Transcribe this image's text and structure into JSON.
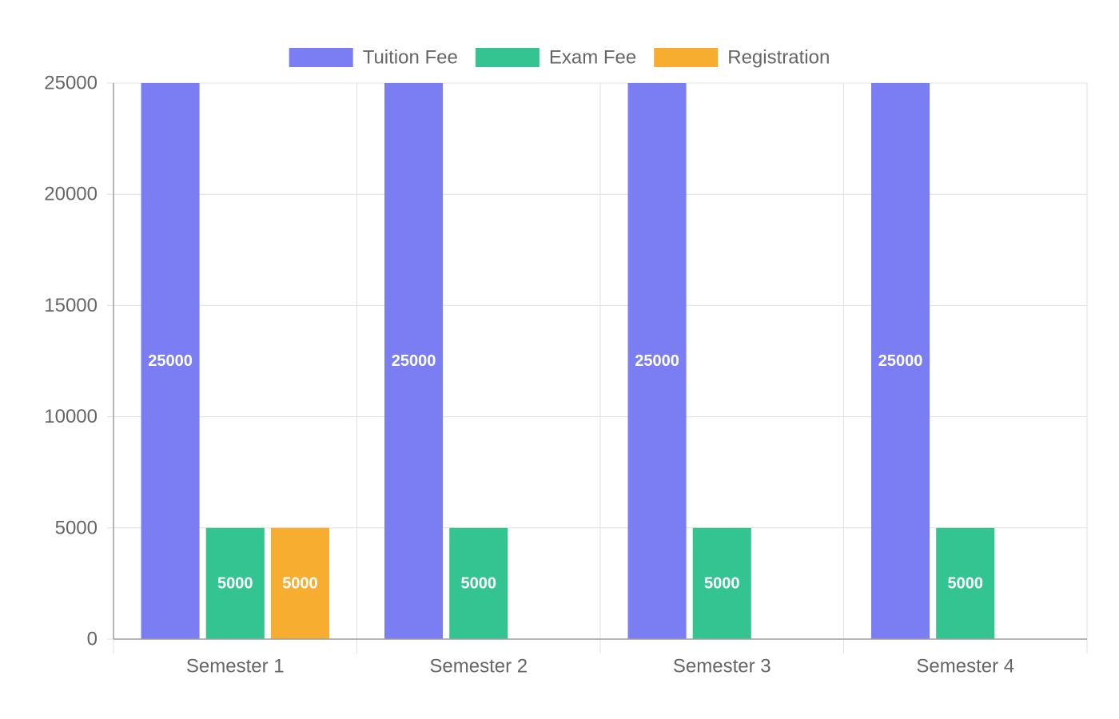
{
  "chart_data": {
    "type": "bar",
    "categories": [
      "Semester 1",
      "Semester 2",
      "Semester 3",
      "Semester 4"
    ],
    "series": [
      {
        "name": "Tuition Fee",
        "color": "#7b7ef2",
        "values": [
          25000,
          25000,
          25000,
          25000
        ]
      },
      {
        "name": "Exam Fee",
        "color": "#34c492",
        "values": [
          5000,
          5000,
          5000,
          5000
        ]
      },
      {
        "name": "Registration",
        "color": "#f6ad30",
        "values": [
          5000,
          0,
          0,
          0
        ]
      }
    ],
    "ylim": [
      0,
      25000
    ],
    "yticks": [
      0,
      5000,
      10000,
      15000,
      20000,
      25000
    ],
    "grid": true,
    "legend_position": "top",
    "data_labels": true,
    "colors": {
      "grid": "#e0e0e0",
      "axis": "#9e9e9e",
      "tick_text": "#666666",
      "data_label": "#ffffff"
    }
  }
}
